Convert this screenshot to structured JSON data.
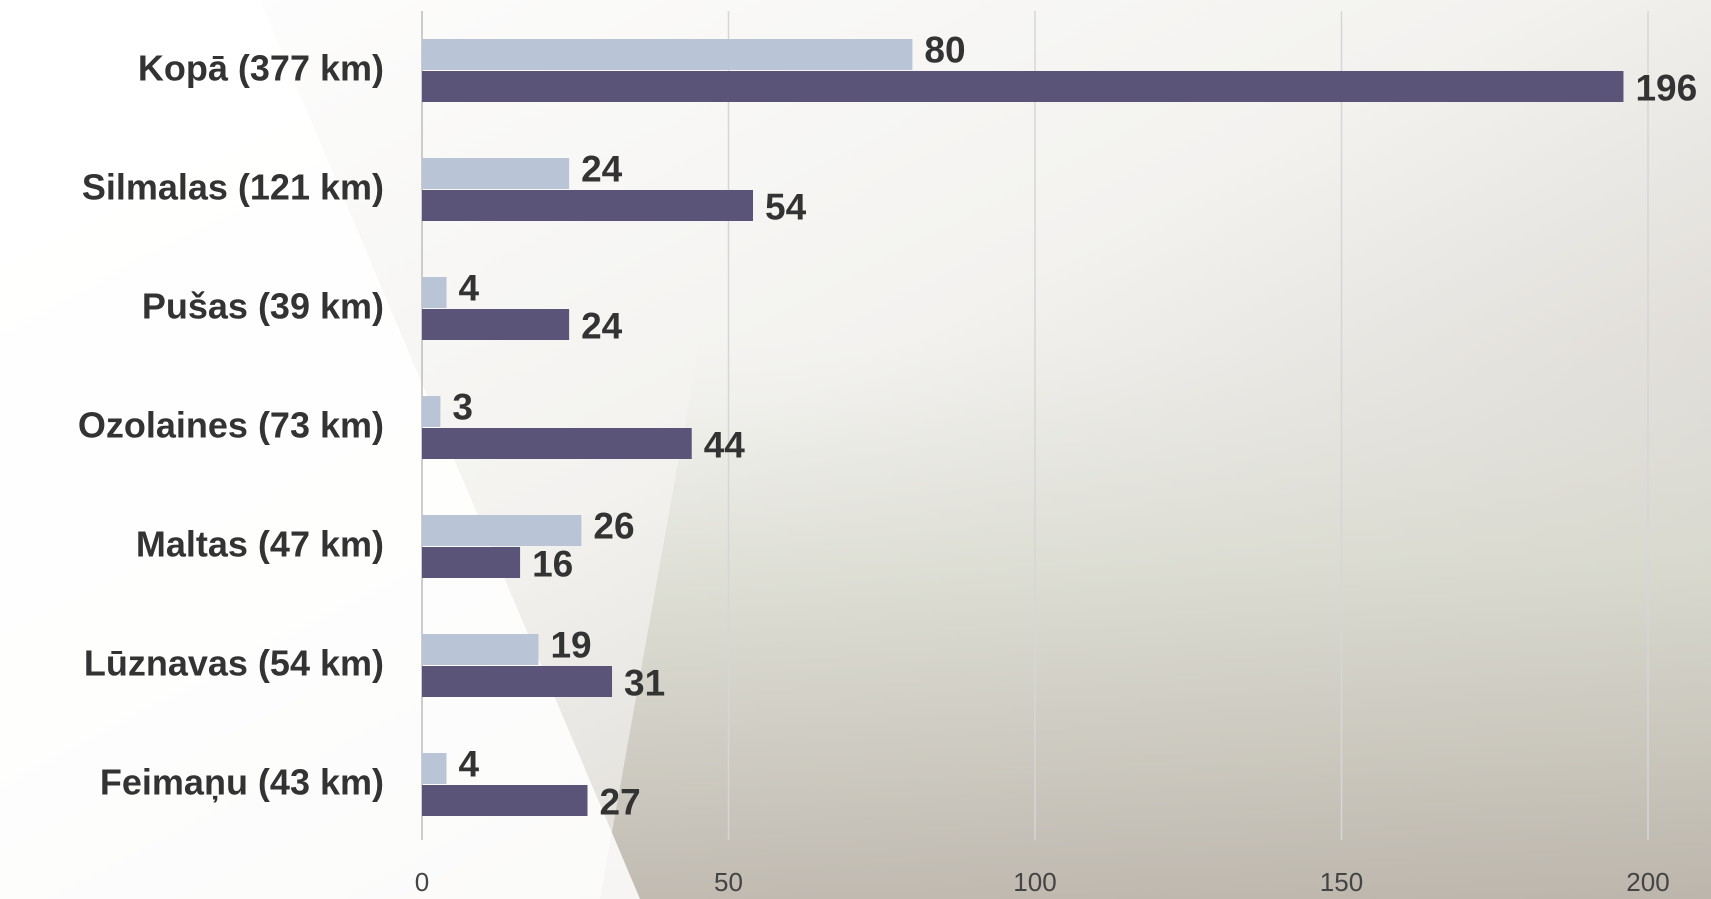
{
  "chart_data": {
    "type": "bar",
    "orientation": "horizontal",
    "categories": [
      "Kopā (377 km)",
      "Silmalas (121 km)",
      "Pušas (39 km)",
      "Ozolaines (73 km)",
      "Maltas (47 km)",
      "Lūznavas (54 km)",
      "Feimaņu (43 km)"
    ],
    "series": [
      {
        "color": "#b9c5d7",
        "values": [
          80,
          24,
          4,
          3,
          26,
          19,
          4
        ]
      },
      {
        "color": "#5a5479",
        "values": [
          196,
          54,
          24,
          44,
          16,
          31,
          27
        ]
      }
    ],
    "xlim": [
      0,
      200
    ],
    "xticks": [
      0,
      50,
      100,
      150,
      200
    ],
    "grid": true
  }
}
